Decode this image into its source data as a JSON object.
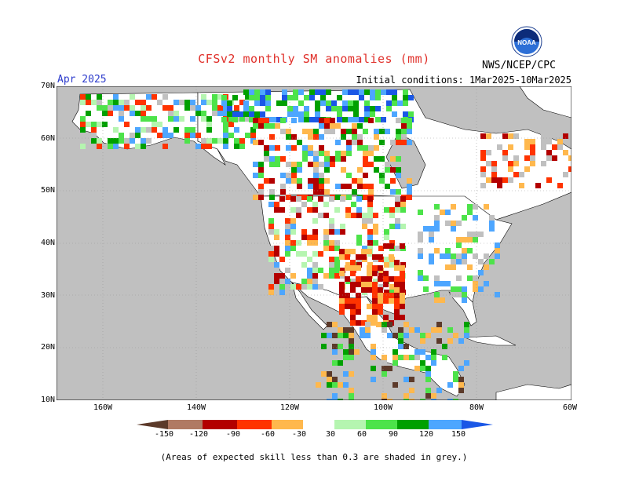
{
  "title": "CFSv2 monthly SM anomalies (mm)",
  "month": "Apr 2025",
  "agency": "NWS/NCEP/CPC",
  "logo_text": "NOAA",
  "initial_conditions": "Initial conditions: 1Mar2025-10Mar2025",
  "lat_labels": [
    "70N",
    "60N",
    "50N",
    "40N",
    "30N",
    "20N",
    "10N"
  ],
  "lon_labels": [
    "160W",
    "140W",
    "120W",
    "100W",
    "80W",
    "60W"
  ],
  "colorbar": {
    "ticks": [
      "-150",
      "-120",
      "-90",
      "-60",
      "-30",
      "30",
      "60",
      "90",
      "120",
      "150"
    ],
    "colors": [
      "#5c3a2a",
      "#b07a63",
      "#b30000",
      "#ff3300",
      "#ffb84d",
      "#ffffff",
      "#b5f5b0",
      "#4de34a",
      "#00a000",
      "#4da6ff",
      "#1a57e6"
    ]
  },
  "map_colors": {
    "ocean": "#ffffff",
    "grey_land": "#c0c0c0",
    "no_anomaly": "#ffffff"
  },
  "footnote": "(Areas of expected skill less than 0.3 are shaded in grey.)"
}
